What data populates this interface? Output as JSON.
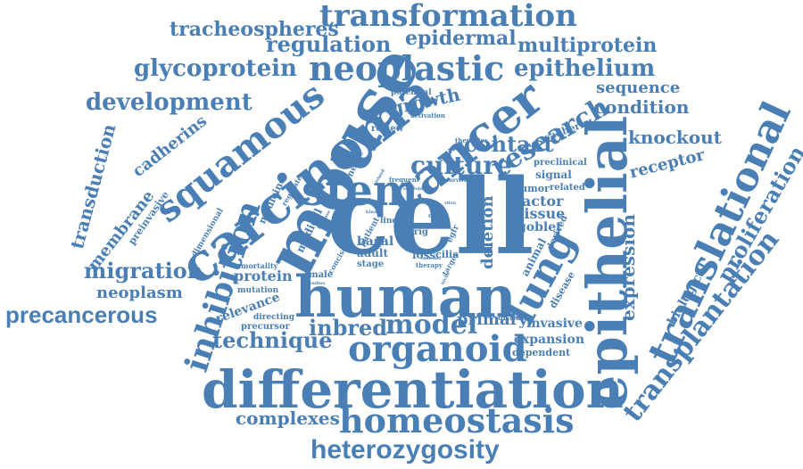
{
  "colors": {
    "word": "#4a7fb5",
    "background": "#ffffff"
  },
  "words": [
    "cell",
    "mouse",
    "human",
    "carcinoma",
    "differentiation",
    "epithelial",
    "cancer",
    "stem",
    "translational",
    "lung",
    "squamous",
    "homeostasis",
    "organoid",
    "inhibition",
    "neoplastic",
    "transformation",
    "heterozygosity",
    "transplantation",
    "model",
    "research",
    "culture",
    "precancerous",
    "inbred",
    "technique",
    "development",
    "glycoprotein",
    "epithelium",
    "proliferation",
    "migration",
    "contact",
    "tracheospheres",
    "regulation",
    "epidermal",
    "multiprotein",
    "complexes",
    "expression",
    "condition",
    "knockout",
    "sequence",
    "growth",
    "transduction",
    "membrane",
    "receptor",
    "neoplasm",
    "primary",
    "deletion",
    "factor",
    "tissue",
    "cadherins",
    "protein",
    "relevance",
    "expansion",
    "biological",
    "invasive",
    "dependent",
    "basal",
    "adult",
    "goblet",
    "signal",
    "tumor",
    "related",
    "preclinical",
    "cadherin",
    "loss",
    "cilia",
    "medical",
    "medicine",
    "nerve",
    "review",
    "potential",
    "activation",
    "activity",
    "therapies",
    "dimensional",
    "regulate",
    "preinvasive",
    "mortality",
    "mutation",
    "directing",
    "precursor",
    "male",
    "concise",
    "stage",
    "animal",
    "disease",
    "therapy",
    "target",
    "distinct",
    "derived",
    "organ",
    "line",
    "patient",
    "egfr",
    "frequent",
    "survival",
    "lrig",
    "increase",
    "systems",
    "scaffold",
    "kinase",
    "island",
    "studies",
    "vitro",
    "niche"
  ]
}
